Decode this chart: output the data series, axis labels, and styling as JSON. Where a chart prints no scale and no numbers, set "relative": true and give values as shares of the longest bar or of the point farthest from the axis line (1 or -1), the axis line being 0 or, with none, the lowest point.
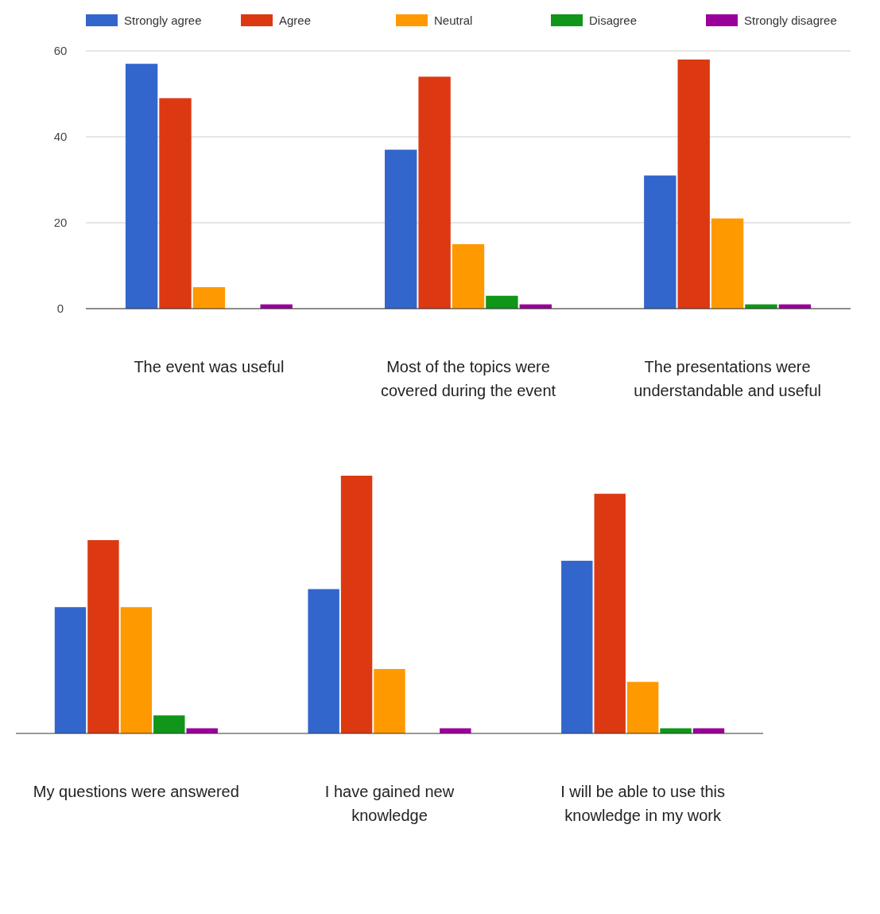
{
  "chart_data": [
    {
      "type": "bar",
      "categories": [
        "The event was useful",
        "Most of the topics were covered during the event",
        "The presentations were understandable and useful"
      ],
      "series": [
        {
          "name": "Strongly agree",
          "color": "#3366cc",
          "values": [
            57,
            37,
            31
          ]
        },
        {
          "name": "Agree",
          "color": "#dc3912",
          "values": [
            49,
            54,
            58
          ]
        },
        {
          "name": "Neutral",
          "color": "#ff9900",
          "values": [
            5,
            15,
            21
          ]
        },
        {
          "name": "Disagree",
          "color": "#109618",
          "values": [
            0,
            3,
            1
          ]
        },
        {
          "name": "Strongly disagree",
          "color": "#990099",
          "values": [
            1,
            1,
            1
          ]
        }
      ],
      "ylim": [
        0,
        60
      ],
      "yticks": [
        0,
        20,
        40,
        60
      ],
      "grid": "y",
      "legend": "top"
    },
    {
      "type": "bar",
      "categories": [
        "My questions were answered",
        "I have gained new knowledge",
        "I will be able to use this knowledge in my work"
      ],
      "relative": true,
      "series": [
        {
          "color": "#3366cc",
          "values": [
            0.49,
            0.56,
            0.67
          ]
        },
        {
          "color": "#dc3912",
          "values": [
            0.75,
            1,
            0.93
          ]
        },
        {
          "color": "#ff9900",
          "values": [
            0.49,
            0.25,
            0.2
          ]
        },
        {
          "color": "#109618",
          "values": [
            0.07,
            0,
            0.02
          ]
        },
        {
          "color": "#990099",
          "values": [
            0.02,
            0.02,
            0.02
          ]
        }
      ]
    }
  ]
}
